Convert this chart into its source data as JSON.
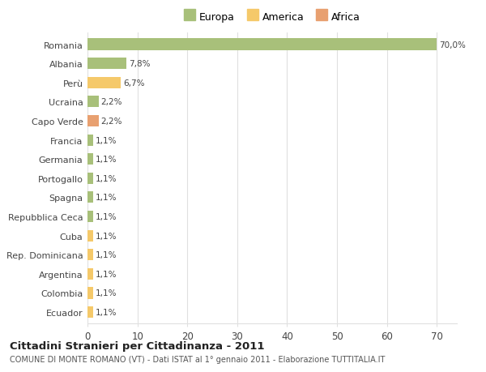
{
  "categories": [
    "Romania",
    "Albania",
    "Perù",
    "Ucraina",
    "Capo Verde",
    "Francia",
    "Germania",
    "Portogallo",
    "Spagna",
    "Repubblica Ceca",
    "Cuba",
    "Rep. Dominicana",
    "Argentina",
    "Colombia",
    "Ecuador"
  ],
  "values": [
    70.0,
    7.8,
    6.7,
    2.2,
    2.2,
    1.1,
    1.1,
    1.1,
    1.1,
    1.1,
    1.1,
    1.1,
    1.1,
    1.1,
    1.1
  ],
  "labels": [
    "70,0%",
    "7,8%",
    "6,7%",
    "2,2%",
    "2,2%",
    "1,1%",
    "1,1%",
    "1,1%",
    "1,1%",
    "1,1%",
    "1,1%",
    "1,1%",
    "1,1%",
    "1,1%",
    "1,1%"
  ],
  "colors": [
    "#a8c07a",
    "#a8c07a",
    "#f5c96a",
    "#a8c07a",
    "#e8a070",
    "#a8c07a",
    "#a8c07a",
    "#a8c07a",
    "#a8c07a",
    "#a8c07a",
    "#f5c96a",
    "#f5c96a",
    "#f5c96a",
    "#f5c96a",
    "#f5c96a"
  ],
  "legend_labels": [
    "Europa",
    "America",
    "Africa"
  ],
  "legend_colors": [
    "#a8c07a",
    "#f5c96a",
    "#e8a070"
  ],
  "title": "Cittadini Stranieri per Cittadinanza - 2011",
  "subtitle": "COMUNE DI MONTE ROMANO (VT) - Dati ISTAT al 1° gennaio 2011 - Elaborazione TUTTITALIA.IT",
  "xlim": [
    0,
    74
  ],
  "background_color": "#ffffff",
  "grid_color": "#e0e0e0",
  "bar_height": 0.6
}
